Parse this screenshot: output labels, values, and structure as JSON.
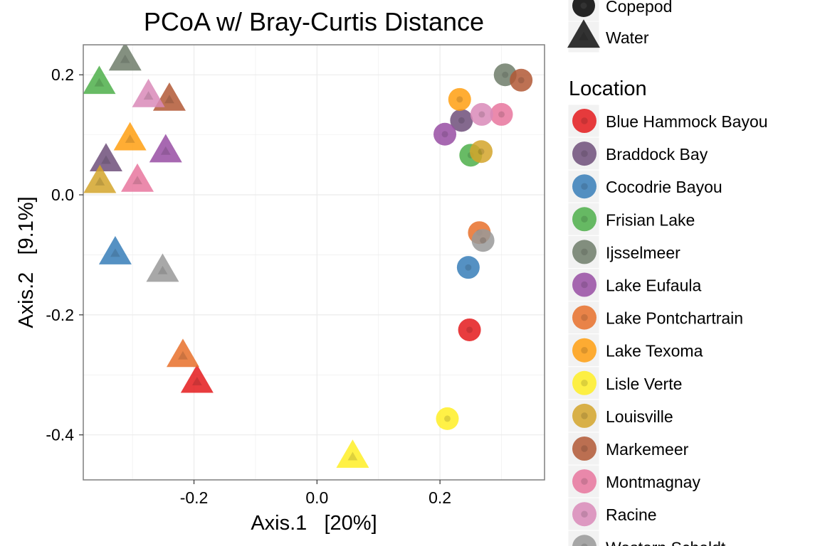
{
  "chart_data": {
    "type": "scatter",
    "title": "PCoA w/ Bray-Curtis Distance",
    "xlabel": "Axis.1   [20%]",
    "ylabel": "Axis.2   [9.1%]",
    "xlim": [
      -0.38,
      0.37
    ],
    "ylim": [
      -0.475,
      0.25
    ],
    "x_ticks": [
      -0.2,
      0.0,
      0.2
    ],
    "x_tick_labels": [
      "-0.2",
      "0.0",
      "0.2"
    ],
    "y_ticks": [
      0.2,
      0.0,
      -0.2,
      -0.4
    ],
    "y_tick_labels": [
      "0.2",
      "0.0",
      "-0.2",
      "-0.4"
    ],
    "grid": true,
    "legend_position": "right",
    "shape_legend": {
      "items": [
        {
          "label": "Copepod",
          "shape": "circle"
        },
        {
          "label": "Water",
          "shape": "triangle"
        }
      ]
    },
    "location_legend": {
      "title": "Location",
      "items": [
        {
          "label": "Blue Hammock Bayou",
          "color": "#E41A1C"
        },
        {
          "label": "Braddock Bay",
          "color": "#6E4F7A"
        },
        {
          "label": "Cocodrie Bayou",
          "color": "#377EB8"
        },
        {
          "label": "Frisian Lake",
          "color": "#4DAF4A"
        },
        {
          "label": "Ijsselmeer",
          "color": "#6F7D6A"
        },
        {
          "label": "Lake Eufaula",
          "color": "#984EA3"
        },
        {
          "label": "Lake Pontchartrain",
          "color": "#E8702A"
        },
        {
          "label": "Lake Texoma",
          "color": "#FF9F10"
        },
        {
          "label": "Lisle Verte",
          "color": "#FFEF26"
        },
        {
          "label": "Louisville",
          "color": "#D4A52A"
        },
        {
          "label": "Markemeer",
          "color": "#B25835"
        },
        {
          "label": "Montmagnay",
          "color": "#E7769E"
        },
        {
          "label": "Racine",
          "color": "#D98AB8"
        },
        {
          "label": "Western Scheldt",
          "color": "#999999"
        }
      ]
    },
    "points": [
      {
        "x": 0.248,
        "y": -0.225,
        "shape": "circle",
        "location": "Blue Hammock Bayou"
      },
      {
        "x": -0.195,
        "y": -0.312,
        "shape": "triangle",
        "location": "Blue Hammock Bayou"
      },
      {
        "x": 0.235,
        "y": 0.124,
        "shape": "circle",
        "location": "Braddock Bay"
      },
      {
        "x": -0.343,
        "y": 0.057,
        "shape": "triangle",
        "location": "Braddock Bay"
      },
      {
        "x": 0.246,
        "y": -0.121,
        "shape": "circle",
        "location": "Cocodrie Bayou"
      },
      {
        "x": -0.328,
        "y": -0.098,
        "shape": "triangle",
        "location": "Cocodrie Bayou"
      },
      {
        "x": 0.25,
        "y": 0.066,
        "shape": "circle",
        "location": "Frisian Lake"
      },
      {
        "x": -0.354,
        "y": 0.186,
        "shape": "triangle",
        "location": "Frisian Lake"
      },
      {
        "x": 0.306,
        "y": 0.2,
        "shape": "circle",
        "location": "Ijsselmeer"
      },
      {
        "x": -0.312,
        "y": 0.225,
        "shape": "triangle",
        "location": "Ijsselmeer"
      },
      {
        "x": 0.208,
        "y": 0.101,
        "shape": "circle",
        "location": "Lake Eufaula"
      },
      {
        "x": -0.246,
        "y": 0.072,
        "shape": "triangle",
        "location": "Lake Eufaula"
      },
      {
        "x": 0.264,
        "y": -0.063,
        "shape": "circle",
        "location": "Lake Pontchartrain"
      },
      {
        "x": -0.218,
        "y": -0.269,
        "shape": "triangle",
        "location": "Lake Pontchartrain"
      },
      {
        "x": 0.232,
        "y": 0.159,
        "shape": "circle",
        "location": "Lake Texoma"
      },
      {
        "x": -0.304,
        "y": 0.092,
        "shape": "triangle",
        "location": "Lake Texoma"
      },
      {
        "x": 0.212,
        "y": -0.373,
        "shape": "circle",
        "location": "Lisle Verte"
      },
      {
        "x": 0.058,
        "y": -0.437,
        "shape": "triangle",
        "location": "Lisle Verte"
      },
      {
        "x": 0.267,
        "y": 0.072,
        "shape": "circle",
        "location": "Louisville"
      },
      {
        "x": -0.353,
        "y": 0.021,
        "shape": "triangle",
        "location": "Louisville"
      },
      {
        "x": 0.332,
        "y": 0.191,
        "shape": "circle",
        "location": "Markemeer"
      },
      {
        "x": -0.24,
        "y": 0.158,
        "shape": "triangle",
        "location": "Markemeer"
      },
      {
        "x": 0.3,
        "y": 0.134,
        "shape": "circle",
        "location": "Montmagnay"
      },
      {
        "x": -0.292,
        "y": 0.023,
        "shape": "triangle",
        "location": "Montmagnay"
      },
      {
        "x": 0.268,
        "y": 0.134,
        "shape": "circle",
        "location": "Racine"
      },
      {
        "x": -0.274,
        "y": 0.164,
        "shape": "triangle",
        "location": "Racine"
      },
      {
        "x": 0.27,
        "y": -0.076,
        "shape": "circle",
        "location": "Western Scheldt"
      },
      {
        "x": -0.251,
        "y": -0.127,
        "shape": "triangle",
        "location": "Western Scheldt"
      }
    ]
  }
}
